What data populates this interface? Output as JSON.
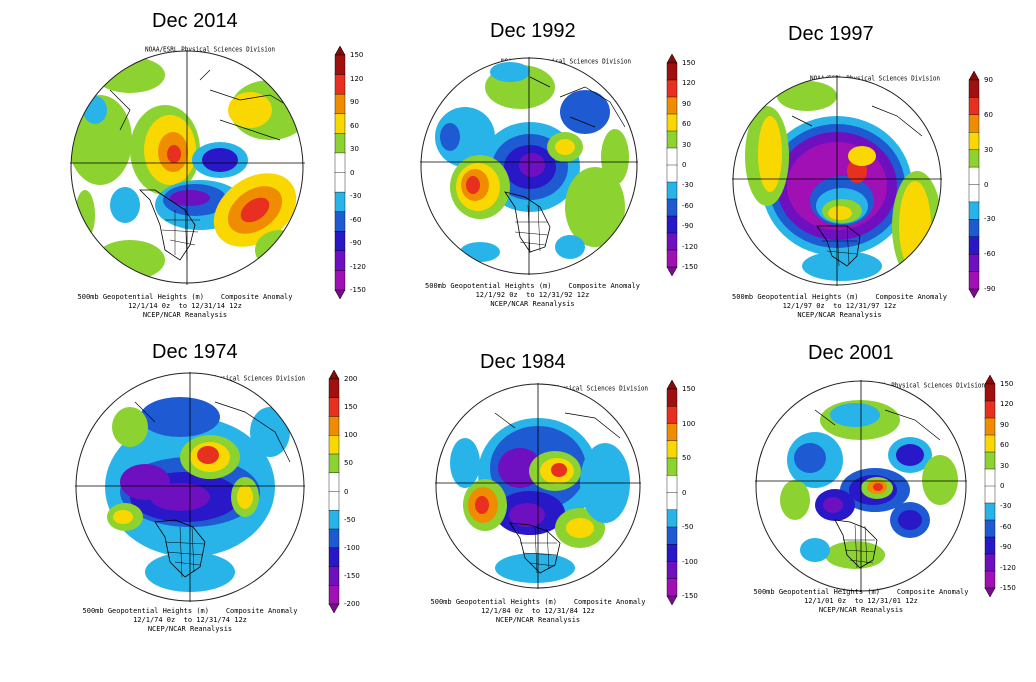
{
  "source_label": "NOAA/ESRL Physical Sciences Division",
  "caption_line1": "500mb Geopotential Heights (m)    Composite Anomaly",
  "caption_line3": "NCEP/NCAR Reanalysis",
  "panels": [
    {
      "id": "2014",
      "title": "Dec 2014",
      "caption_dates": "12/1/14 0z  to 12/31/14 12z",
      "colorbar_ticks": [
        "150",
        "120",
        "90",
        "60",
        "30",
        "0",
        "-30",
        "-60",
        "-90",
        "-120",
        "-150"
      ]
    },
    {
      "id": "1992",
      "title": "Dec 1992",
      "caption_dates": "12/1/92 0z  to 12/31/92 12z",
      "colorbar_ticks": [
        "150",
        "120",
        "90",
        "60",
        "30",
        "0",
        "-30",
        "-60",
        "-90",
        "-120",
        "-150"
      ]
    },
    {
      "id": "1997",
      "title": "Dec 1997",
      "caption_dates": "12/1/97 0z  to 12/31/97 12z",
      "colorbar_ticks": [
        "90",
        "60",
        "30",
        "0",
        "-30",
        "-60",
        "-90"
      ]
    },
    {
      "id": "1974",
      "title": "Dec 1974",
      "caption_dates": "12/1/74 0z  to 12/31/74 12z",
      "colorbar_ticks": [
        "200",
        "150",
        "100",
        "50",
        "0",
        "-50",
        "-100",
        "-150",
        "-200"
      ]
    },
    {
      "id": "1984",
      "title": "Dec 1984",
      "caption_dates": "12/1/84 0z  to 12/31/84 12z",
      "colorbar_ticks": [
        "150",
        "100",
        "50",
        "0",
        "-50",
        "-100",
        "-150"
      ]
    },
    {
      "id": "2001",
      "title": "Dec 2001",
      "caption_dates": "12/1/01 0z  to 12/31/01 12z",
      "colorbar_ticks": [
        "150",
        "120",
        "90",
        "60",
        "30",
        "0",
        "-30",
        "-60",
        "-90",
        "-120",
        "-150"
      ]
    }
  ],
  "colors": {
    "strong_positive": "#a01010",
    "positive_high": "#e83020",
    "positive_mid": "#f08c00",
    "positive_low": "#f8d800",
    "weak_positive": "#8cd230",
    "neutral": "#ffffff",
    "weak_negative": "#28b4e8",
    "negative_low": "#1e5ad2",
    "negative_mid": "#2818c8",
    "negative_high": "#6e10c0",
    "strong_negative": "#a010b4"
  }
}
